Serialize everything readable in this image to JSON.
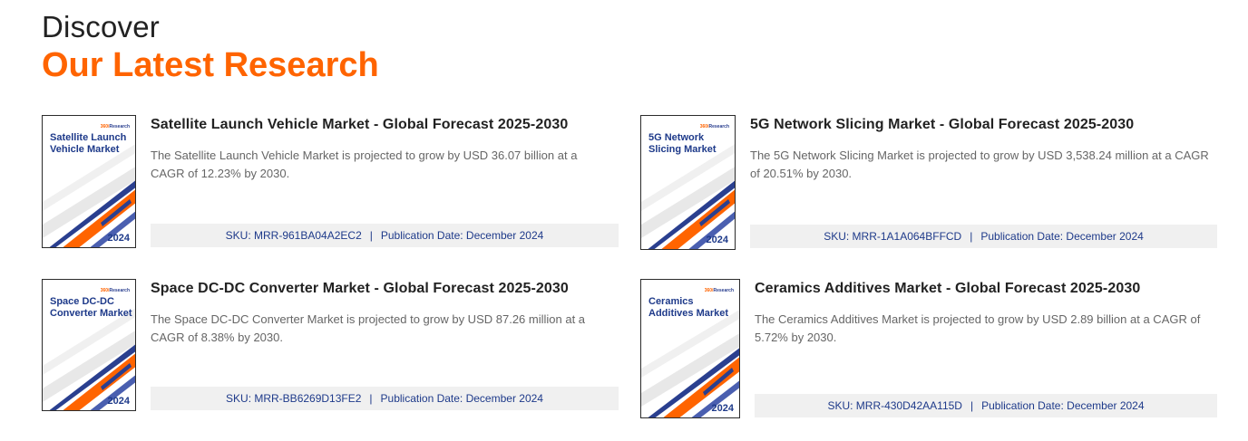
{
  "header": {
    "small": "Discover",
    "big": "Our Latest Research"
  },
  "cover_brand": {
    "prefix": "360i",
    "suffix": "Research"
  },
  "cards": [
    {
      "cover_title": "Satellite Launch Vehicle Market",
      "cover_year": "2024",
      "title": "Satellite Launch Vehicle Market - Global Forecast 2025-2030",
      "description": "The Satellite Launch Vehicle Market is projected to grow by USD 36.07 billion at a CAGR of 12.23% by 2030.",
      "sku": "SKU: MRR-961BA04A2EC2",
      "separator": "|",
      "pub_date": "Publication Date: December 2024"
    },
    {
      "cover_title": "5G Network Slicing Market",
      "cover_year": "2024",
      "title": "5G Network Slicing Market - Global Forecast 2025-2030",
      "description": "The 5G Network Slicing Market is projected to grow by USD 3,538.24 million at a CAGR of 20.51% by 2030.",
      "sku": "SKU: MRR-1A1A064BFFCD",
      "separator": "|",
      "pub_date": "Publication Date: December 2024"
    },
    {
      "cover_title": "Space DC-DC Converter Market",
      "cover_year": "2024",
      "title": "Space DC-DC Converter Market - Global Forecast 2025-2030",
      "description": "The Space DC-DC Converter Market is projected to grow by USD 87.26 million at a CAGR of 8.38% by 2030.",
      "sku": "SKU: MRR-BB6269D13FE2",
      "separator": "|",
      "pub_date": "Publication Date: December 2024"
    },
    {
      "cover_title": "Ceramics Additives Market",
      "cover_year": "2024",
      "title": "Ceramics Additives Market - Global Forecast 2025-2030",
      "description": "The Ceramics Additives Market is projected to grow by USD 2.89 billion at a CAGR of 5.72% by 2030.",
      "sku": "SKU: MRR-430D42AA115D",
      "separator": "|",
      "pub_date": "Publication Date: December 2024"
    }
  ],
  "colors": {
    "accent": "#ff6400",
    "navy": "#1e3a8a",
    "meta_bg": "#f0f0f0"
  }
}
